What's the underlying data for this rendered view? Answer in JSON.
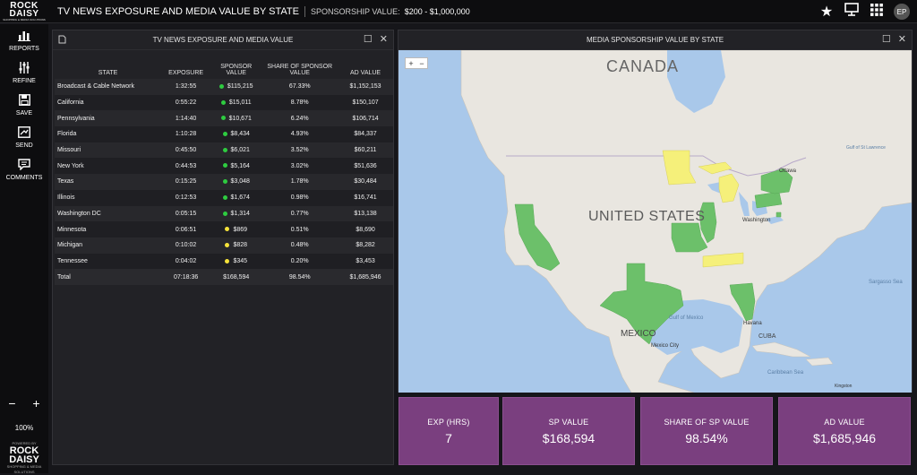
{
  "brand": {
    "line1": "ROCK",
    "line2": "DAISY",
    "tagline": "SHOPPING & MEDIA SOLUTIONS"
  },
  "header": {
    "title": "TV NEWS EXPOSURE AND MEDIA VALUE BY STATE",
    "filter_label": "SPONSORSHIP VALUE:",
    "filter_value": "$200 - $1,000,000",
    "avatar_initials": "EP"
  },
  "sidebar": {
    "items": [
      {
        "label": "REPORTS",
        "icon": "bar-chart-icon"
      },
      {
        "label": "REFINE",
        "icon": "sliders-icon"
      },
      {
        "label": "SAVE",
        "icon": "save-icon"
      },
      {
        "label": "SEND",
        "icon": "send-icon"
      },
      {
        "label": "COMMENTS",
        "icon": "comments-icon"
      }
    ],
    "zoom_minus": "−",
    "zoom_plus": "+",
    "zoom_level": "100%",
    "powered_by": "POWERED BY",
    "powered_line1": "ROCK",
    "powered_line2": "DAISY",
    "powered_tagline": "SHOPPING & MEDIA SOLUTIONS"
  },
  "table_panel": {
    "title": "TV NEWS EXPOSURE AND MEDIA VALUE",
    "columns": [
      "STATE",
      "EXPOSURE",
      "SPONSOR VALUE",
      "SHARE OF SPONSOR VALUE",
      "AD VALUE"
    ],
    "rows": [
      {
        "state": "Broadcast & Cable Network",
        "exposure": "1:32:55",
        "sponsor": "$115,215",
        "share": "67.33%",
        "ad": "$1,152,153",
        "dot": "#2ecc40"
      },
      {
        "state": "California",
        "exposure": "0:55:22",
        "sponsor": "$15,011",
        "share": "8.78%",
        "ad": "$150,107",
        "dot": "#2ecc40"
      },
      {
        "state": "Pennsylvania",
        "exposure": "1:14:40",
        "sponsor": "$10,671",
        "share": "6.24%",
        "ad": "$106,714",
        "dot": "#2ecc40"
      },
      {
        "state": "Florida",
        "exposure": "1:10:28",
        "sponsor": "$8,434",
        "share": "4.93%",
        "ad": "$84,337",
        "dot": "#2ecc40"
      },
      {
        "state": "Missouri",
        "exposure": "0:45:50",
        "sponsor": "$6,021",
        "share": "3.52%",
        "ad": "$60,211",
        "dot": "#2ecc40"
      },
      {
        "state": "New York",
        "exposure": "0:44:53",
        "sponsor": "$5,164",
        "share": "3.02%",
        "ad": "$51,636",
        "dot": "#2ecc40"
      },
      {
        "state": "Texas",
        "exposure": "0:15:25",
        "sponsor": "$3,048",
        "share": "1.78%",
        "ad": "$30,484",
        "dot": "#2ecc40"
      },
      {
        "state": "Illinois",
        "exposure": "0:12:53",
        "sponsor": "$1,674",
        "share": "0.98%",
        "ad": "$16,741",
        "dot": "#2ecc40"
      },
      {
        "state": "Washington DC",
        "exposure": "0:05:15",
        "sponsor": "$1,314",
        "share": "0.77%",
        "ad": "$13,138",
        "dot": "#2ecc40"
      },
      {
        "state": "Minnesota",
        "exposure": "0:06:51",
        "sponsor": "$869",
        "share": "0.51%",
        "ad": "$8,690",
        "dot": "#f5e23a"
      },
      {
        "state": "Michigan",
        "exposure": "0:10:02",
        "sponsor": "$828",
        "share": "0.48%",
        "ad": "$8,282",
        "dot": "#f5e23a"
      },
      {
        "state": "Tennessee",
        "exposure": "0:04:02",
        "sponsor": "$345",
        "share": "0.20%",
        "ad": "$3,453",
        "dot": "#f5e23a"
      }
    ],
    "total": {
      "state": "Total",
      "exposure": "07:18:36",
      "sponsor": "$168,594",
      "share": "98.54%",
      "ad": "$1,685,946"
    }
  },
  "map_panel": {
    "title": "MEDIA SPONSORSHIP VALUE BY STATE",
    "zoom_in": "+",
    "zoom_out": "−",
    "labels": {
      "canada": "CANADA",
      "united_states": "UNITED STATES",
      "mexico": "MEXICO",
      "cuba": "CUBA",
      "gulf": "Gulf of Mexico",
      "sargasso": "Sargasso Sea",
      "caribbean": "Caribbean Sea",
      "ottawa": "Ottawa",
      "washington": "Washington",
      "havana": "Havana",
      "mexico_city": "Mexico City",
      "kingston": "Kingston",
      "gulf_stl": "Gulf of St Lawrence"
    },
    "colors": {
      "high": "#6cc06a",
      "low": "#f5f07a",
      "land": "#e9e6e0",
      "water": "#a9c8ea"
    }
  },
  "kpis": [
    {
      "label": "EXP (HRS)",
      "value": "7"
    },
    {
      "label": "SP VALUE",
      "value": "$168,594"
    },
    {
      "label": "SHARE OF SP VALUE",
      "value": "98.54%"
    },
    {
      "label": "AD VALUE",
      "value": "$1,685,946"
    }
  ]
}
